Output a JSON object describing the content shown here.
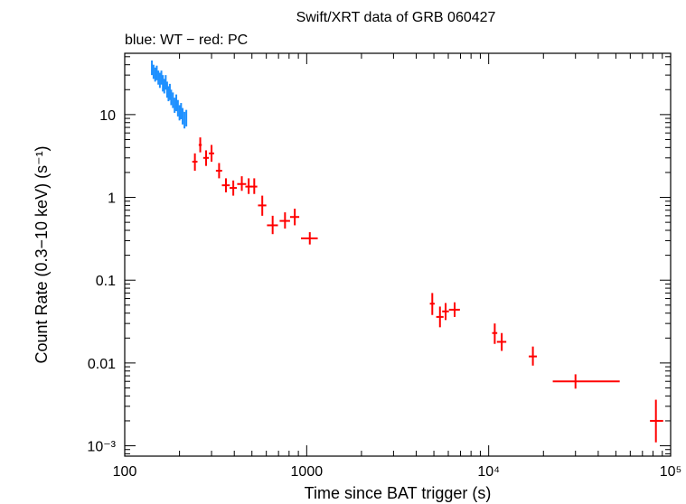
{
  "chart_data": {
    "type": "scatter",
    "title": "Swift/XRT data of GRB 060427",
    "subtitle": "blue: WT − red: PC",
    "xlabel": "Time since BAT trigger (s)",
    "ylabel": "Count Rate (0.3−10 keV) (s⁻¹)",
    "xscale": "log",
    "yscale": "log",
    "xlim": [
      100,
      100000
    ],
    "ylim": [
      0.00075,
      55
    ],
    "x_ticks": [
      {
        "value": 100,
        "label": "100"
      },
      {
        "value": 1000,
        "label": "1000"
      },
      {
        "value": 10000,
        "label": "10⁴"
      },
      {
        "value": 100000,
        "label": "10⁵"
      }
    ],
    "y_ticks": [
      {
        "value": 0.001,
        "label": "10⁻³"
      },
      {
        "value": 0.01,
        "label": "0.01"
      },
      {
        "value": 0.1,
        "label": "0.1"
      },
      {
        "value": 1,
        "label": "1"
      },
      {
        "value": 10,
        "label": "10"
      }
    ],
    "series": [
      {
        "mode": "WT",
        "color": "#1e90ff",
        "points": [
          {
            "x": 141,
            "y": 36,
            "xerr": [
              1,
              1
            ],
            "yerr": [
              30,
              45
            ]
          },
          {
            "x": 144,
            "y": 33,
            "xerr": [
              1,
              1
            ],
            "yerr": [
              27,
              40
            ]
          },
          {
            "x": 147,
            "y": 30,
            "xerr": [
              1,
              1
            ],
            "yerr": [
              25,
              37
            ]
          },
          {
            "x": 150,
            "y": 32,
            "xerr": [
              1,
              1
            ],
            "yerr": [
              26,
              39
            ]
          },
          {
            "x": 153,
            "y": 28,
            "xerr": [
              1,
              1
            ],
            "yerr": [
              23,
              34
            ]
          },
          {
            "x": 156,
            "y": 26,
            "xerr": [
              1,
              1
            ],
            "yerr": [
              21,
              32
            ]
          },
          {
            "x": 159,
            "y": 28,
            "xerr": [
              1,
              1
            ],
            "yerr": [
              23,
              34
            ]
          },
          {
            "x": 162,
            "y": 24,
            "xerr": [
              1,
              1
            ],
            "yerr": [
              19,
              30
            ]
          },
          {
            "x": 165,
            "y": 22,
            "xerr": [
              1,
              1
            ],
            "yerr": [
              18,
              27
            ]
          },
          {
            "x": 168,
            "y": 25,
            "xerr": [
              1,
              1
            ],
            "yerr": [
              20,
              30
            ]
          },
          {
            "x": 171,
            "y": 20,
            "xerr": [
              1,
              1
            ],
            "yerr": [
              16,
              25
            ]
          },
          {
            "x": 174,
            "y": 18,
            "xerr": [
              1,
              1
            ],
            "yerr": [
              14.5,
              22
            ]
          },
          {
            "x": 177,
            "y": 19,
            "xerr": [
              1,
              1
            ],
            "yerr": [
              15,
              23.5
            ]
          },
          {
            "x": 180,
            "y": 16,
            "xerr": [
              1,
              1
            ],
            "yerr": [
              13,
              20
            ]
          },
          {
            "x": 184,
            "y": 15,
            "xerr": [
              1,
              1
            ],
            "yerr": [
              12,
              18.5
            ]
          },
          {
            "x": 188,
            "y": 13,
            "xerr": [
              1,
              1
            ],
            "yerr": [
              10.5,
              16
            ]
          },
          {
            "x": 192,
            "y": 14,
            "xerr": [
              1,
              1
            ],
            "yerr": [
              11,
              17.5
            ]
          },
          {
            "x": 196,
            "y": 12,
            "xerr": [
              1,
              1
            ],
            "yerr": [
              9.5,
              15
            ]
          },
          {
            "x": 200,
            "y": 10.5,
            "xerr": [
              1.5,
              1.5
            ],
            "yerr": [
              8.5,
              13
            ]
          },
          {
            "x": 204,
            "y": 11,
            "xerr": [
              1.5,
              1.5
            ],
            "yerr": [
              8.8,
              13.8
            ]
          },
          {
            "x": 208,
            "y": 9.5,
            "xerr": [
              1.5,
              1.5
            ],
            "yerr": [
              7.6,
              12
            ]
          },
          {
            "x": 213,
            "y": 8.5,
            "xerr": [
              1.5,
              1.5
            ],
            "yerr": [
              6.8,
              10.8
            ]
          },
          {
            "x": 218,
            "y": 9.0,
            "xerr": [
              1.5,
              1.5
            ],
            "yerr": [
              7.2,
              11.4
            ]
          }
        ]
      },
      {
        "mode": "PC",
        "color": "#ff0000",
        "points": [
          {
            "x": 243,
            "y": 2.7,
            "xerr": [
              8,
              8
            ],
            "yerr": [
              2.1,
              3.4
            ]
          },
          {
            "x": 260,
            "y": 4.3,
            "xerr": [
              5,
              5
            ],
            "yerr": [
              3.5,
              5.3
            ]
          },
          {
            "x": 280,
            "y": 3.0,
            "xerr": [
              10,
              10
            ],
            "yerr": [
              2.4,
              3.7
            ]
          },
          {
            "x": 300,
            "y": 3.4,
            "xerr": [
              10,
              10
            ],
            "yerr": [
              2.7,
              4.3
            ]
          },
          {
            "x": 330,
            "y": 2.1,
            "xerr": [
              13,
              13
            ],
            "yerr": [
              1.7,
              2.6
            ]
          },
          {
            "x": 360,
            "y": 1.4,
            "xerr": [
              18,
              18
            ],
            "yerr": [
              1.15,
              1.7
            ]
          },
          {
            "x": 395,
            "y": 1.3,
            "xerr": [
              18,
              18
            ],
            "yerr": [
              1.05,
              1.6
            ]
          },
          {
            "x": 440,
            "y": 1.45,
            "xerr": [
              25,
              25
            ],
            "yerr": [
              1.2,
              1.8
            ]
          },
          {
            "x": 480,
            "y": 1.35,
            "xerr": [
              20,
              20
            ],
            "yerr": [
              1.1,
              1.7
            ]
          },
          {
            "x": 515,
            "y": 1.35,
            "xerr": [
              20,
              20
            ],
            "yerr": [
              1.1,
              1.7
            ]
          },
          {
            "x": 570,
            "y": 0.8,
            "xerr": [
              30,
              30
            ],
            "yerr": [
              0.6,
              1.05
            ]
          },
          {
            "x": 650,
            "y": 0.46,
            "xerr": [
              45,
              45
            ],
            "yerr": [
              0.36,
              0.6
            ]
          },
          {
            "x": 760,
            "y": 0.52,
            "xerr": [
              50,
              50
            ],
            "yerr": [
              0.42,
              0.66
            ]
          },
          {
            "x": 860,
            "y": 0.58,
            "xerr": [
              50,
              50
            ],
            "yerr": [
              0.46,
              0.73
            ]
          },
          {
            "x": 1040,
            "y": 0.32,
            "xerr": [
              110,
              110
            ],
            "yerr": [
              0.27,
              0.38
            ]
          },
          {
            "x": 4900,
            "y": 0.052,
            "xerr": [
              150,
              150
            ],
            "yerr": [
              0.038,
              0.07
            ]
          },
          {
            "x": 5400,
            "y": 0.036,
            "xerr": [
              250,
              250
            ],
            "yerr": [
              0.027,
              0.048
            ]
          },
          {
            "x": 5800,
            "y": 0.042,
            "xerr": [
              250,
              250
            ],
            "yerr": [
              0.033,
              0.053
            ]
          },
          {
            "x": 6500,
            "y": 0.044,
            "xerr": [
              450,
              450
            ],
            "yerr": [
              0.036,
              0.054
            ]
          },
          {
            "x": 10800,
            "y": 0.023,
            "xerr": [
              350,
              350
            ],
            "yerr": [
              0.017,
              0.03
            ]
          },
          {
            "x": 11800,
            "y": 0.018,
            "xerr": [
              700,
              700
            ],
            "yerr": [
              0.014,
              0.023
            ]
          },
          {
            "x": 17500,
            "y": 0.012,
            "xerr": [
              900,
              900
            ],
            "yerr": [
              0.0093,
              0.0158
            ]
          },
          {
            "x": 30000,
            "y": 0.006,
            "xerr": [
              7500,
              22500
            ],
            "yerr": [
              0.0049,
              0.0073
            ]
          },
          {
            "x": 83000,
            "y": 0.002,
            "xerr": [
              6000,
              8000
            ],
            "yerr": [
              0.0011,
              0.0036
            ]
          }
        ]
      }
    ]
  }
}
